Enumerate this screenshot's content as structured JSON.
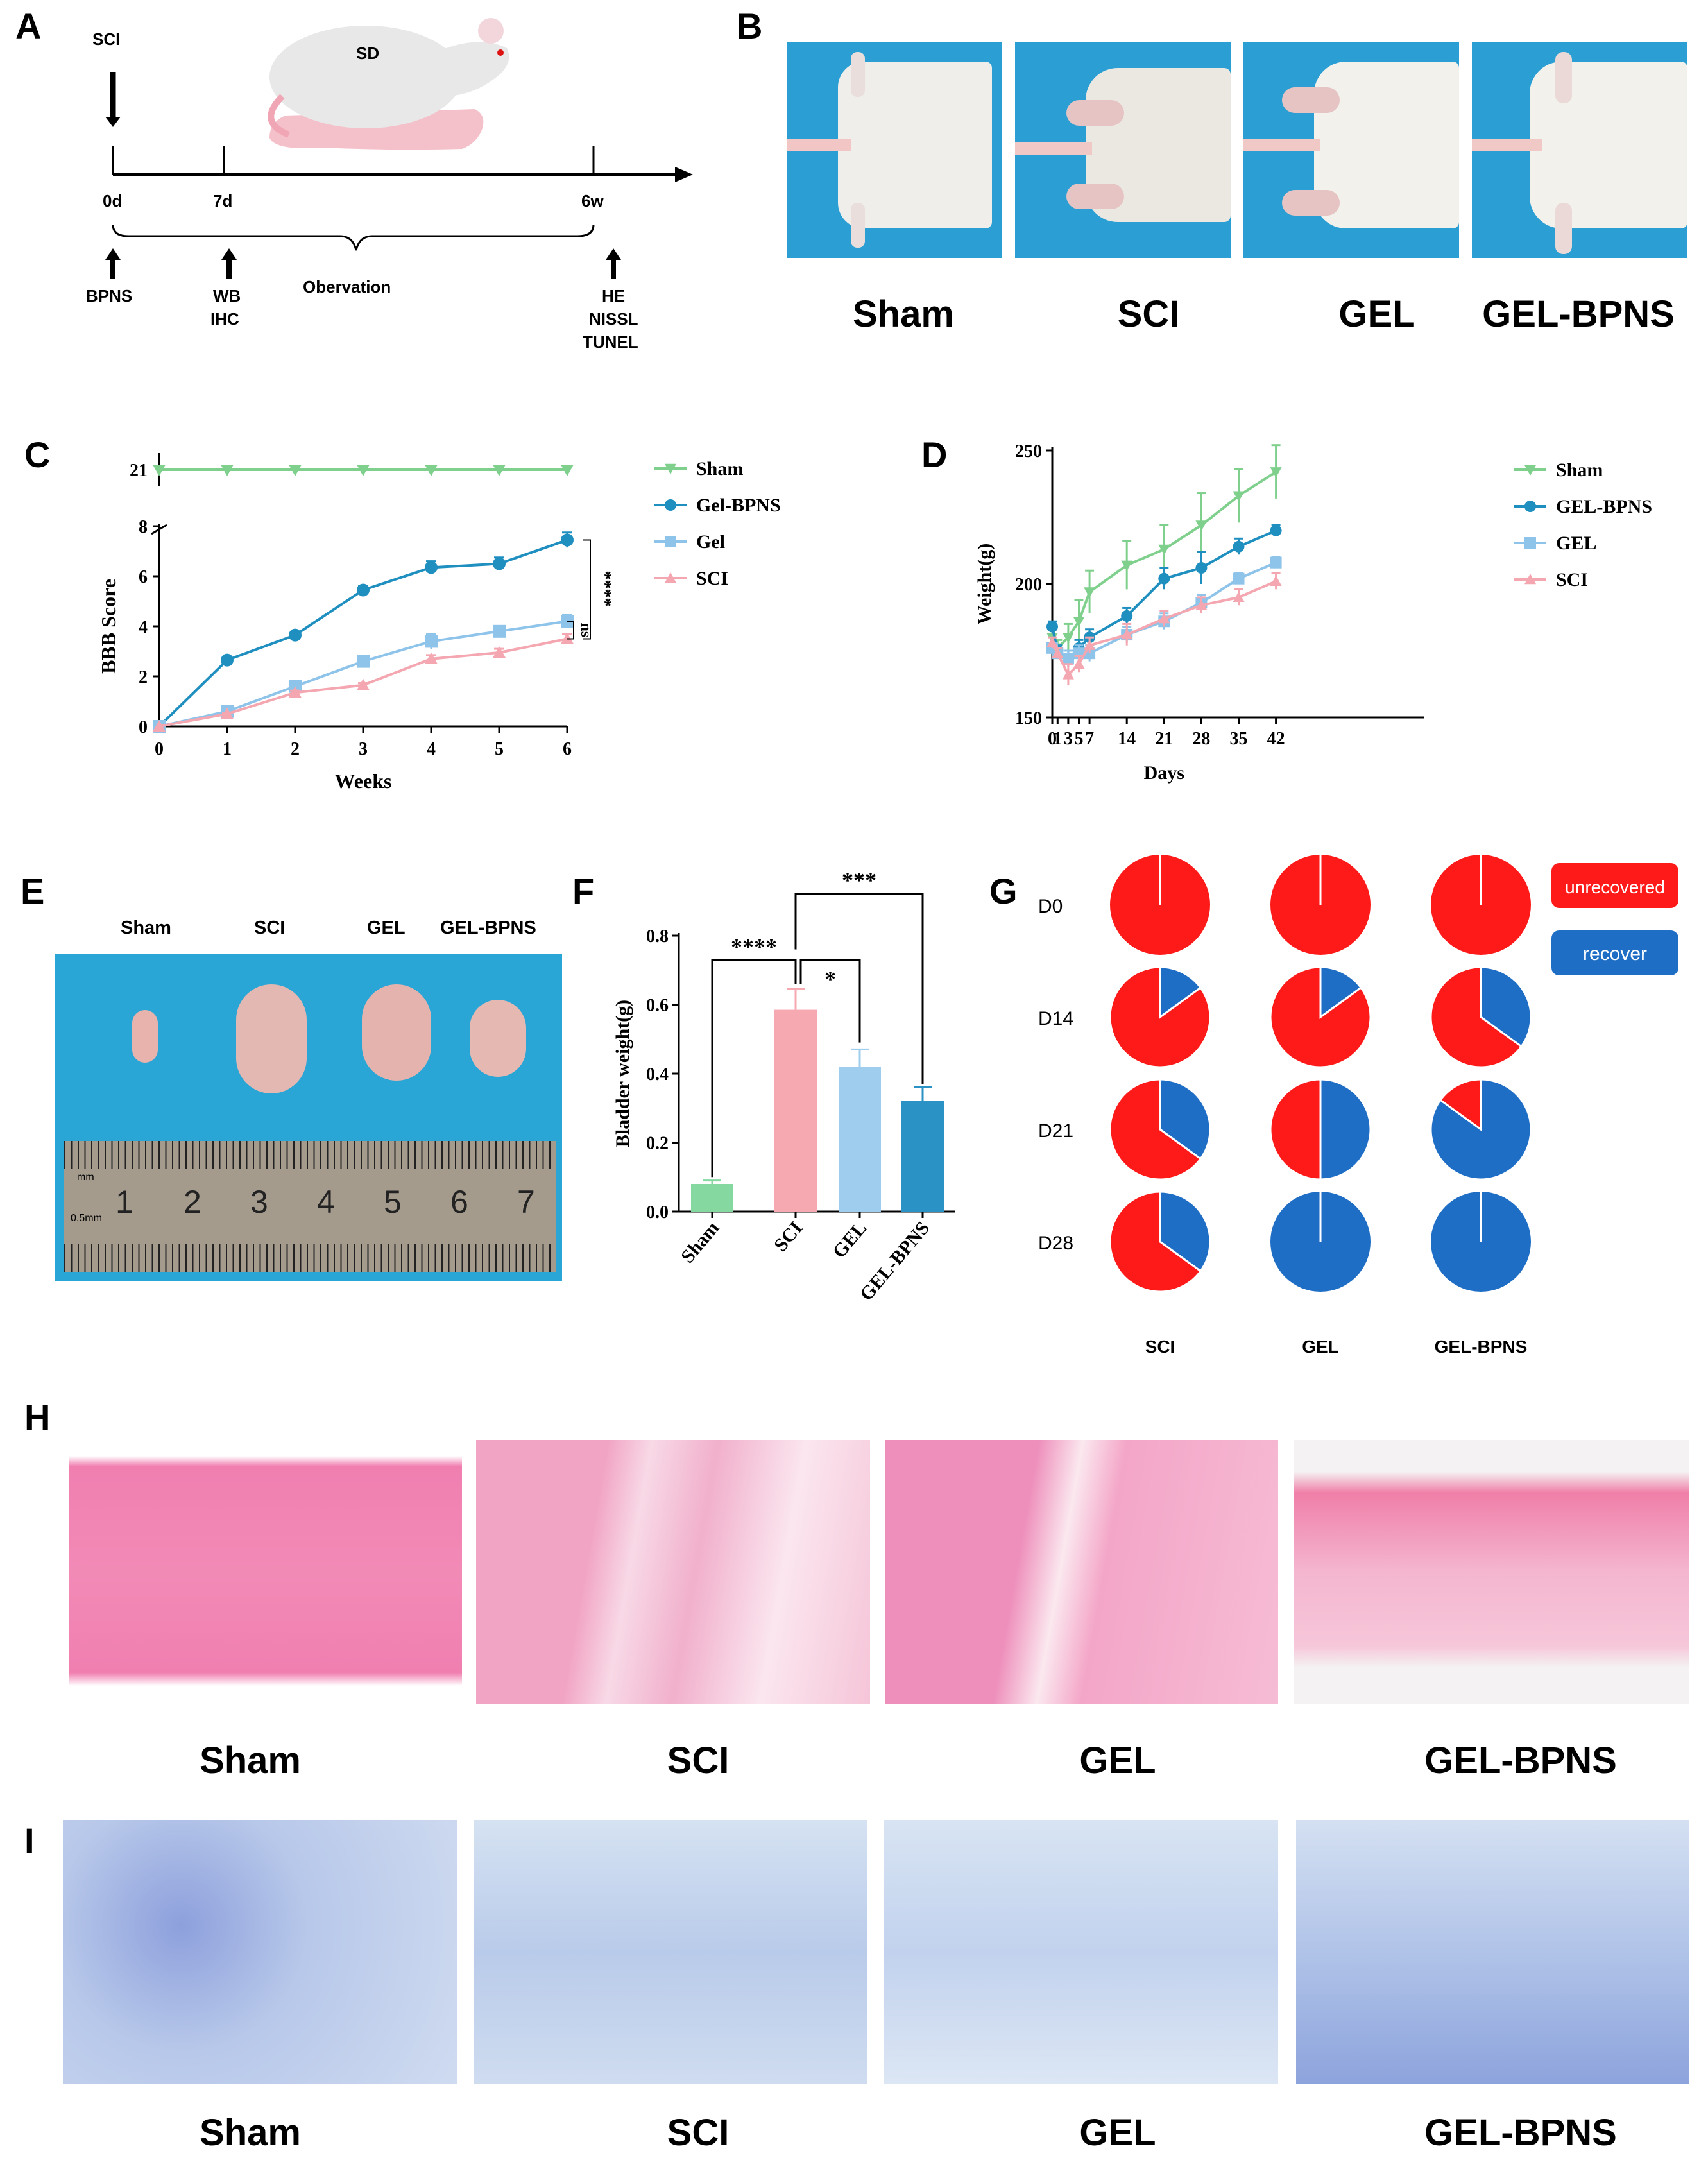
{
  "panels": {
    "A": "A",
    "B": "B",
    "C": "C",
    "D": "D",
    "E": "E",
    "F": "F",
    "G": "G",
    "H": "H",
    "I": "I"
  },
  "timeline": {
    "sci": "SCI",
    "animal": "SD",
    "t0": "0d",
    "t1": "7d",
    "t2": "6w",
    "ev0": "BPNS",
    "ev1a": "WB",
    "ev1b": "IHC",
    "ev_mid": "Obervation",
    "ev2a": "HE",
    "ev2b": "NISSL",
    "ev2c": "TUNEL"
  },
  "groups": [
    "Sham",
    "SCI",
    "GEL",
    "GEL-BPNS"
  ],
  "photo_descriptions": {
    "B": [
      "rat hindlimbs - Sham",
      "rat hindlimbs - SCI",
      "rat hindlimbs - GEL",
      "rat hindlimbs - GEL-BPNS"
    ],
    "E": "bladders with ruler",
    "H": [
      "HE section - Sham",
      "HE section - SCI",
      "HE section - GEL",
      "HE section - GEL-BPNS"
    ],
    "I": [
      "Nissl section - Sham",
      "Nissl section - SCI",
      "Nissl section - GEL",
      "Nissl section - GEL-BPNS"
    ]
  },
  "ruler": {
    "unit_mm": "mm",
    "unit_half": "0.5mm",
    "numbers": [
      "1",
      "2",
      "3",
      "4",
      "5",
      "6",
      "7"
    ]
  },
  "colors": {
    "sham": "#7fd08c",
    "gelbpns": "#1f8fc0",
    "gel": "#8ec3ea",
    "sci": "#f4a7b0",
    "bar_sham": "#84d8a0",
    "bar_sci": "#f7a9b2",
    "bar_gel": "#9fcdee",
    "bar_gelbpns": "#2a92c4",
    "pie_red": "#ff1a1a",
    "pie_blue": "#1f6ec6",
    "board": "#2aa6d6"
  },
  "chart_data": [
    {
      "id": "C",
      "type": "line",
      "xlabel": "Weeks",
      "ylabel": "BBB Score",
      "x": [
        0,
        1,
        2,
        3,
        4,
        5,
        6
      ],
      "xticks": [
        "0",
        "1",
        "2",
        "3",
        "4",
        "5",
        "6"
      ],
      "yticks": [
        "0",
        "2",
        "4",
        "6",
        "8"
      ],
      "ybreak_tick": "21",
      "ylim": [
        0,
        8
      ],
      "series": [
        {
          "name": "Sham",
          "values": [
            21,
            21,
            21,
            21,
            21,
            21,
            21
          ],
          "errors": [
            0,
            0,
            0,
            0,
            0,
            0,
            0
          ],
          "marker": "triangle-down"
        },
        {
          "name": "Gel-BPNS",
          "values": [
            0,
            2.65,
            3.65,
            5.45,
            6.35,
            6.5,
            7.45
          ],
          "errors": [
            0,
            0.08,
            0.08,
            0.15,
            0.25,
            0.25,
            0.3
          ],
          "marker": "circle"
        },
        {
          "name": "Gel",
          "values": [
            0,
            0.6,
            1.6,
            2.6,
            3.4,
            3.8,
            4.2
          ],
          "errors": [
            0,
            0.05,
            0.1,
            0.1,
            0.3,
            0.15,
            0.25
          ],
          "marker": "square"
        },
        {
          "name": "SCI",
          "values": [
            0,
            0.5,
            1.35,
            1.65,
            2.7,
            2.95,
            3.5
          ],
          "errors": [
            0,
            0.05,
            0.08,
            0.08,
            0.15,
            0.15,
            0.2
          ],
          "marker": "triangle-up"
        }
      ],
      "annotations": [
        "****",
        "ns"
      ]
    },
    {
      "id": "D",
      "type": "line",
      "xlabel": "Days",
      "ylabel": "Weight(g)",
      "x": [
        0,
        1,
        3,
        5,
        7,
        14,
        21,
        28,
        35,
        42
      ],
      "xticks": [
        "0",
        "1",
        "3",
        "5",
        "7",
        "14",
        "21",
        "28",
        "35",
        "42"
      ],
      "yticks": [
        "150",
        "200",
        "250"
      ],
      "ylim": [
        150,
        250
      ],
      "series": [
        {
          "name": "Sham",
          "values": [
            180,
            176,
            180,
            186,
            197,
            207,
            213,
            222,
            233,
            242
          ],
          "errors": [
            3,
            3,
            5,
            8,
            8,
            9,
            9,
            12,
            10,
            10
          ],
          "marker": "triangle-down"
        },
        {
          "name": "GEL-BPNS",
          "values": [
            184,
            175,
            172,
            176,
            180,
            188,
            202,
            206,
            214,
            220
          ],
          "errors": [
            2,
            2,
            3,
            3,
            3,
            3,
            4,
            6,
            3,
            2
          ],
          "marker": "circle"
        },
        {
          "name": "GEL",
          "values": [
            176,
            174,
            172,
            174,
            174,
            181,
            186,
            193,
            202,
            208
          ],
          "errors": [
            2,
            2,
            3,
            3,
            3,
            3,
            3,
            3,
            2,
            2
          ],
          "marker": "square"
        },
        {
          "name": "SCI",
          "values": [
            178,
            174,
            166,
            170,
            177,
            181,
            187,
            192,
            195,
            201
          ],
          "errors": [
            2,
            2,
            4,
            3,
            3,
            4,
            3,
            3,
            3,
            3
          ],
          "marker": "triangle-up"
        }
      ]
    },
    {
      "id": "F",
      "type": "bar",
      "ylabel": "Bladder weight(g)",
      "categories": [
        "Sham",
        "SCI",
        "GEL",
        "GEL-BPNS"
      ],
      "values": [
        0.08,
        0.585,
        0.42,
        0.32
      ],
      "errors": [
        0.01,
        0.06,
        0.05,
        0.04
      ],
      "yticks": [
        "0.0",
        "0.2",
        "0.4",
        "0.6",
        "0.8"
      ],
      "ylim": [
        0,
        0.8
      ],
      "significance": [
        {
          "a": "Sham",
          "b": "SCI",
          "label": "****"
        },
        {
          "a": "SCI",
          "b": "GEL",
          "label": "*"
        },
        {
          "a": "SCI",
          "b": "GEL-BPNS",
          "label": "***"
        }
      ]
    },
    {
      "id": "G",
      "type": "pie",
      "rows": [
        "D0",
        "D14",
        "D21",
        "D28"
      ],
      "columns": [
        "SCI",
        "GEL",
        "GEL-BPNS"
      ],
      "legend": [
        "unrecovered",
        "recover"
      ],
      "recovered_fraction": [
        [
          0,
          0,
          0
        ],
        [
          0.15,
          0.15,
          0.35
        ],
        [
          0.35,
          0.5,
          0.85
        ],
        [
          0.35,
          1.0,
          1.0
        ]
      ]
    }
  ]
}
